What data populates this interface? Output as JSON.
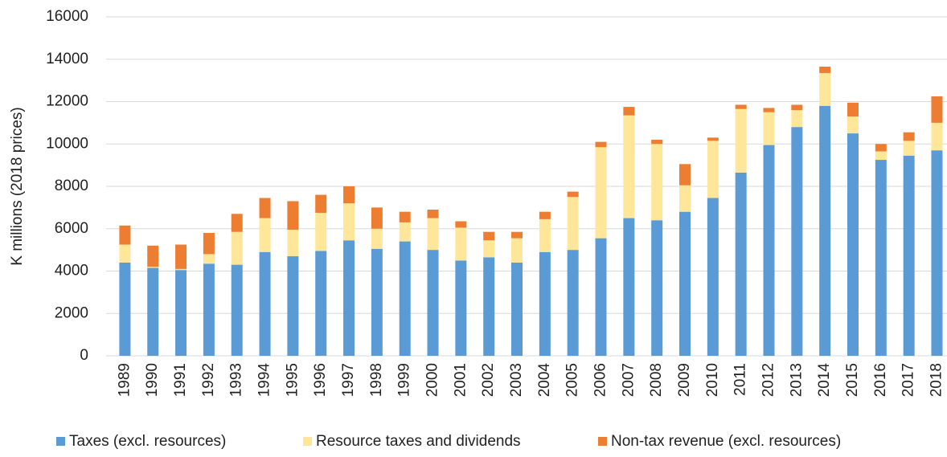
{
  "chart_data": {
    "type": "stacked_bar",
    "y_label": "K millions (2018 prices)",
    "categories": [
      "1989",
      "1990",
      "1991",
      "1992",
      "1993",
      "1994",
      "1995",
      "1996",
      "1997",
      "1998",
      "1999",
      "2000",
      "2001",
      "2002",
      "2003",
      "2004",
      "2005",
      "2006",
      "2007",
      "2008",
      "2009",
      "2010",
      "2011",
      "2012",
      "2013",
      "2014",
      "2015",
      "2016",
      "2017",
      "2018"
    ],
    "series": [
      {
        "name": "Taxes (excl. resources)",
        "color": "#5b9bd5",
        "values": [
          4400,
          4150,
          4050,
          4350,
          4300,
          4900,
          4700,
          4950,
          5450,
          5050,
          5400,
          5000,
          4500,
          4650,
          4400,
          4900,
          5000,
          5550,
          6500,
          6400,
          6800,
          7450,
          8650,
          9950,
          10800,
          11800,
          10500,
          9250,
          9450,
          9700
        ]
      },
      {
        "name": "Resource taxes and dividends",
        "color": "#ffe699",
        "values": [
          850,
          50,
          50,
          450,
          1550,
          1600,
          1250,
          1800,
          1750,
          950,
          900,
          1500,
          1550,
          800,
          1150,
          1550,
          2500,
          4300,
          4850,
          3600,
          1250,
          2700,
          3000,
          1550,
          800,
          1550,
          800,
          400,
          700,
          1300
        ]
      },
      {
        "name": "Non-tax revenue (excl. resources)",
        "color": "#ed7d31",
        "values": [
          900,
          1000,
          1150,
          1000,
          850,
          950,
          1350,
          850,
          800,
          1000,
          500,
          400,
          300,
          400,
          300,
          350,
          250,
          250,
          400,
          200,
          1000,
          150,
          200,
          200,
          250,
          300,
          650,
          350,
          400,
          1250
        ]
      }
    ],
    "ylim": [
      0,
      16000
    ],
    "yticks": [
      0,
      2000,
      4000,
      6000,
      8000,
      10000,
      12000,
      14000,
      16000
    ],
    "grid": true
  }
}
